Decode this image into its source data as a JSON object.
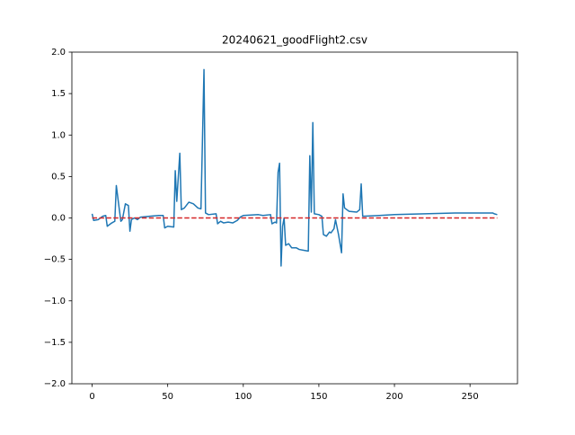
{
  "chart_data": {
    "type": "line",
    "title": "20240621_goodFlight2.csv",
    "xlim": [
      -13.4,
      281.4
    ],
    "ylim": [
      -2.0,
      2.0
    ],
    "xticks": [
      0,
      50,
      100,
      150,
      200,
      250
    ],
    "yticks": [
      {
        "value": -2.0,
        "label": "−2.0"
      },
      {
        "value": -1.5,
        "label": "−1.5"
      },
      {
        "value": -1.0,
        "label": "−1.0"
      },
      {
        "value": -0.5,
        "label": "−0.5"
      },
      {
        "value": 0.0,
        "label": "0.0"
      },
      {
        "value": 0.5,
        "label": "0.5"
      },
      {
        "value": 1.0,
        "label": "1.0"
      },
      {
        "value": 1.5,
        "label": "1.5"
      },
      {
        "value": 2.0,
        "label": "2.0"
      }
    ],
    "series": [
      {
        "color": "#1f77b4",
        "dashed": false,
        "x": [
          0,
          1,
          4,
          7,
          9,
          10,
          13,
          15,
          16,
          18,
          19,
          20,
          22,
          24,
          25,
          26,
          28,
          30,
          32,
          38,
          44,
          47,
          48,
          50,
          54,
          55,
          56,
          58,
          59,
          61,
          64,
          67,
          70,
          72,
          74,
          75,
          77,
          82,
          83,
          85,
          87,
          90,
          93,
          96,
          98,
          100,
          110,
          113,
          118,
          119,
          121,
          122,
          123,
          124,
          125,
          126,
          127,
          128,
          130,
          132,
          135,
          137,
          140,
          143,
          144,
          145,
          146,
          147,
          150,
          152,
          153,
          155,
          157,
          158,
          160,
          161,
          163,
          165,
          166,
          167,
          170,
          175,
          177,
          178,
          179,
          190,
          200,
          220,
          240,
          260,
          265,
          266,
          268
        ],
        "values": [
          0.05,
          -0.03,
          -0.02,
          0.02,
          0.03,
          -0.1,
          -0.06,
          -0.04,
          0.39,
          0.1,
          -0.04,
          -0.02,
          0.17,
          0.15,
          -0.16,
          -0.02,
          0.0,
          -0.02,
          0.01,
          0.02,
          0.03,
          0.03,
          -0.12,
          -0.1,
          -0.11,
          0.57,
          0.2,
          0.78,
          0.1,
          0.12,
          0.19,
          0.17,
          0.12,
          0.11,
          1.79,
          0.06,
          0.04,
          0.05,
          -0.07,
          -0.04,
          -0.06,
          -0.05,
          -0.06,
          -0.03,
          0.01,
          0.03,
          0.04,
          0.03,
          0.04,
          -0.07,
          -0.05,
          -0.06,
          0.55,
          0.66,
          -0.58,
          -0.1,
          0.0,
          -0.33,
          -0.31,
          -0.36,
          -0.36,
          -0.38,
          -0.39,
          -0.4,
          0.75,
          0.07,
          1.15,
          0.05,
          0.04,
          0.02,
          -0.2,
          -0.22,
          -0.17,
          -0.18,
          -0.13,
          -0.02,
          -0.2,
          -0.42,
          0.29,
          0.12,
          0.08,
          0.07,
          0.1,
          0.41,
          0.02,
          0.03,
          0.04,
          0.05,
          0.06,
          0.06,
          0.06,
          0.05,
          0.04
        ]
      },
      {
        "color": "#d62728",
        "dashed": true,
        "x": [
          0,
          268
        ],
        "values": [
          0,
          0
        ]
      }
    ]
  }
}
